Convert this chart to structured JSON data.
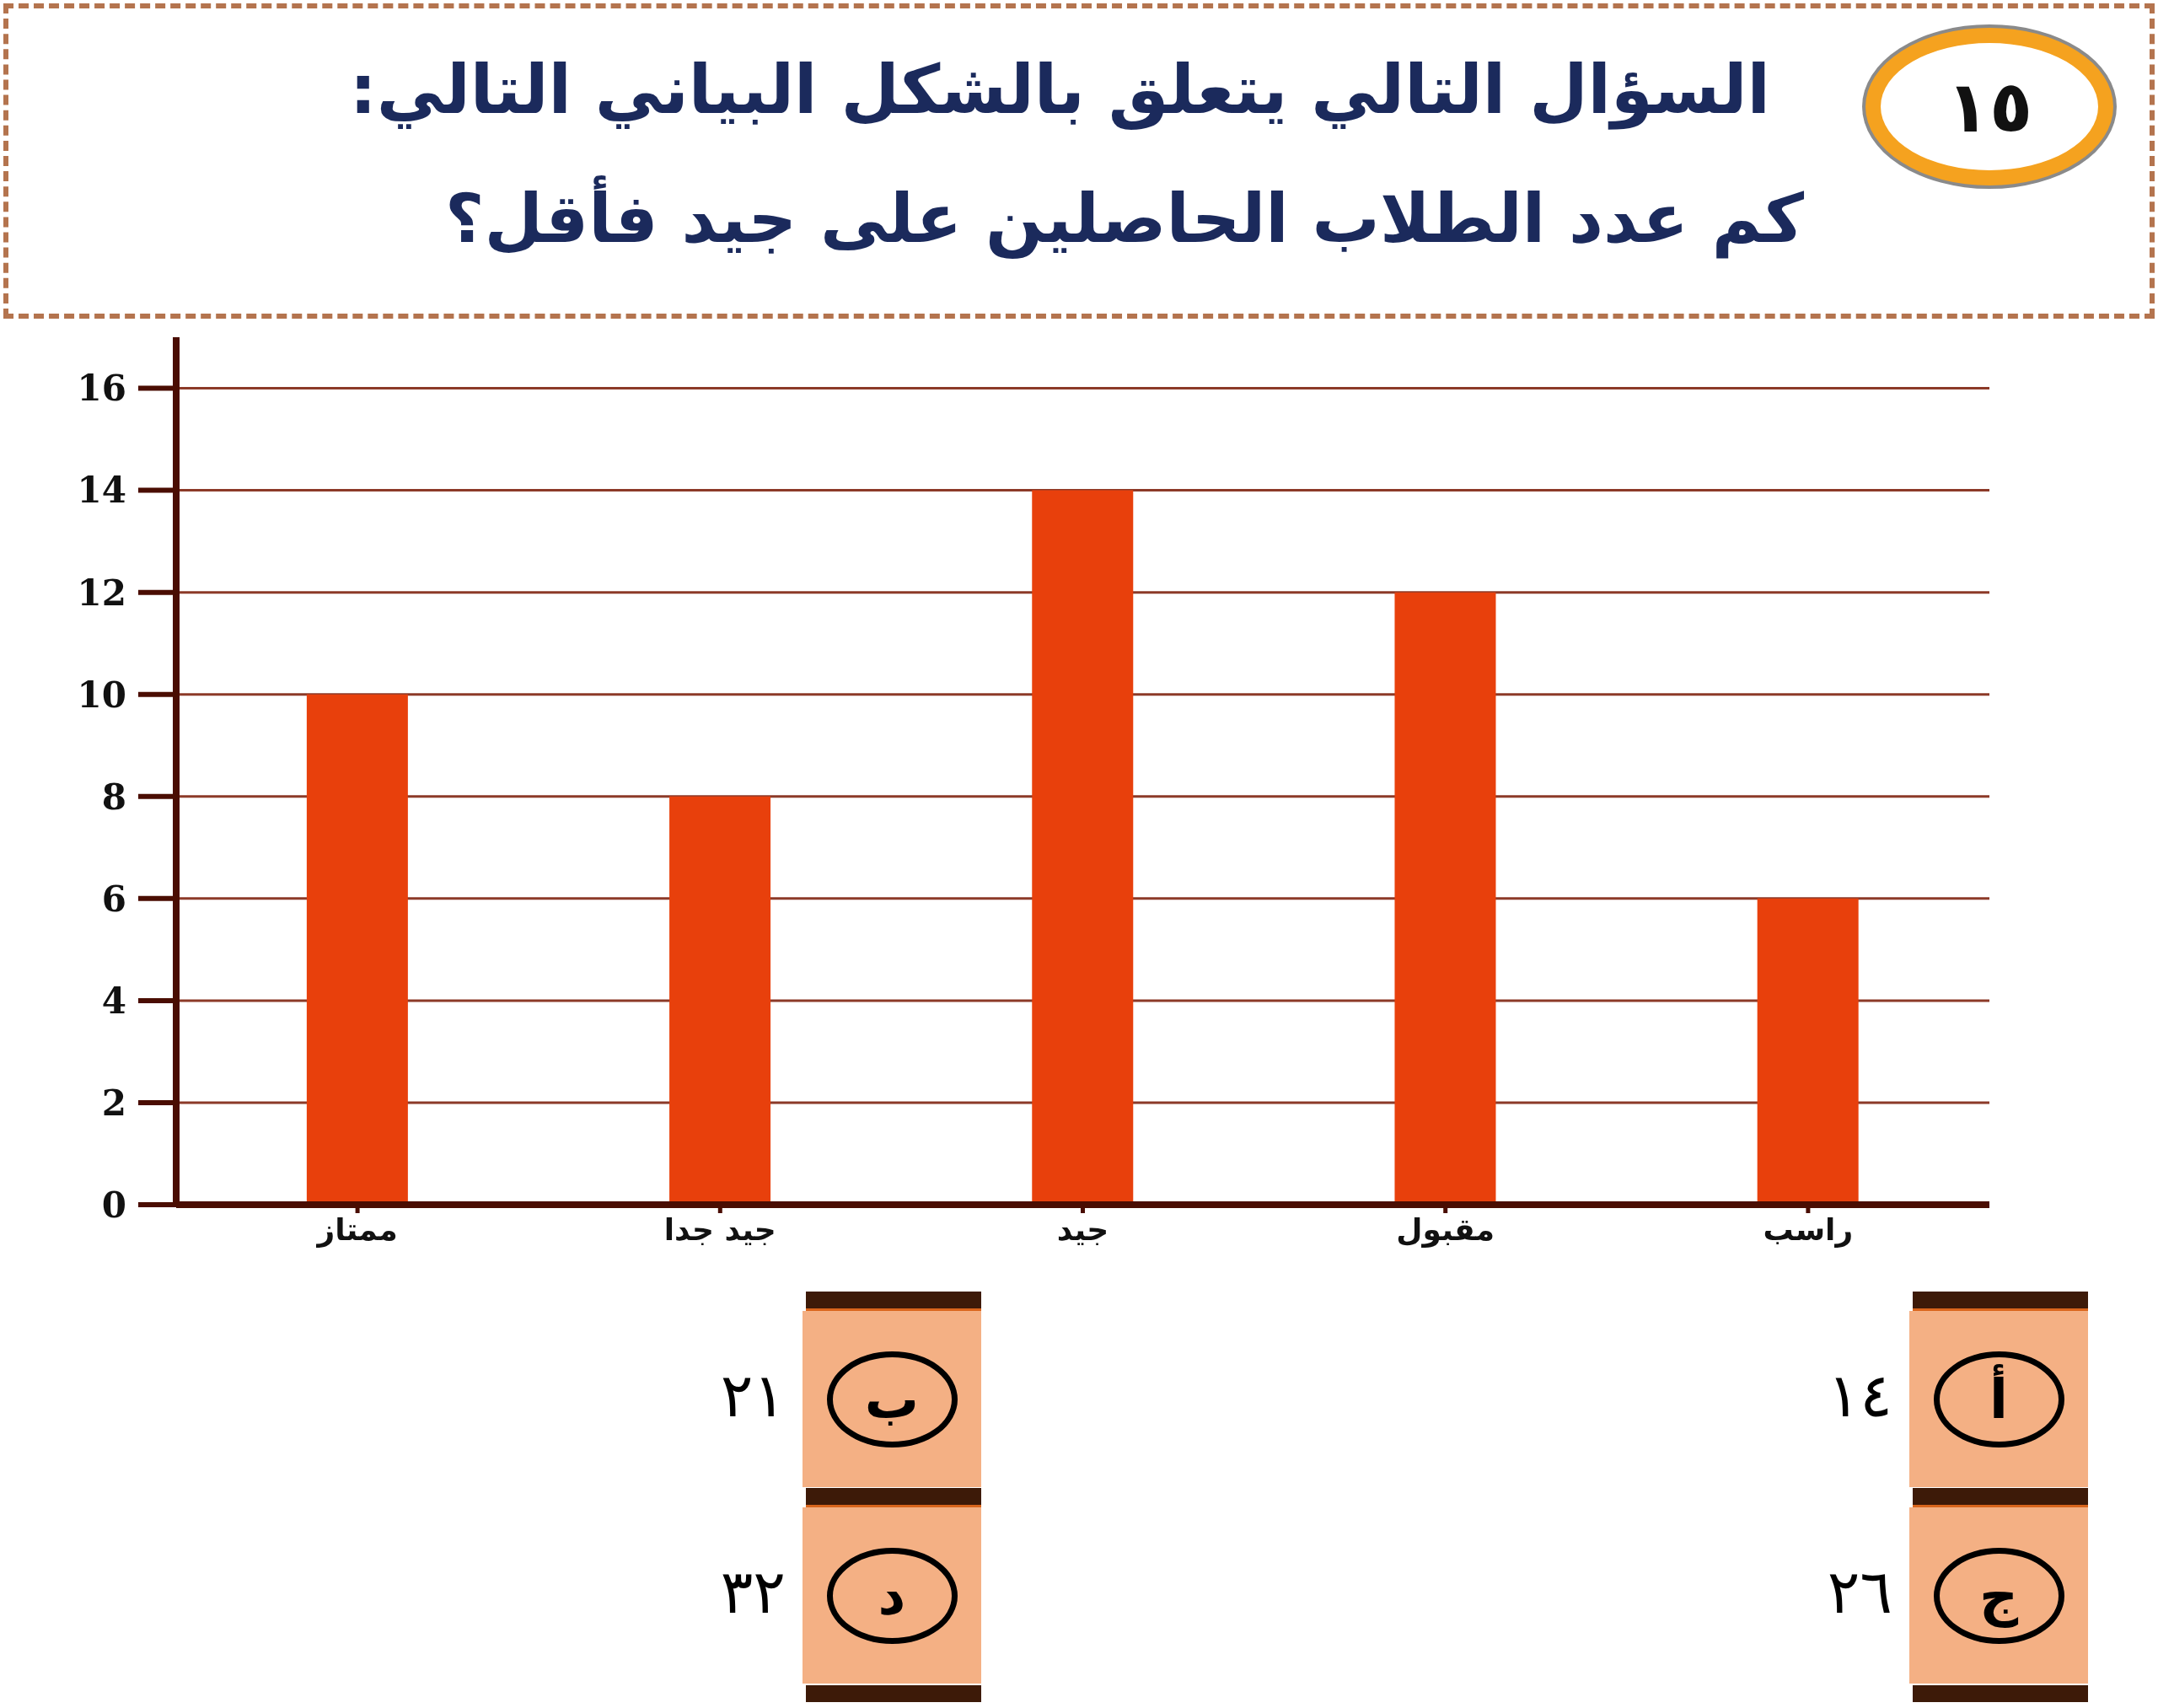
{
  "chart_data": {
    "type": "bar",
    "title": "السؤال التالي يتعلق بالشكل البياني التالي:",
    "subtitle": "كم عدد الطلاب الحاصلين على جيد فأقل؟",
    "categories": [
      "ممتاز",
      "جيد جدا",
      "جيد",
      "مقبول",
      "راسب"
    ],
    "values": [
      10,
      8,
      14,
      12,
      6
    ],
    "color": "#e8400c",
    "ylim": [
      0,
      17
    ],
    "yticks": [
      0,
      2,
      4,
      6,
      8,
      10,
      12,
      14,
      16
    ],
    "grid": "y",
    "annotations": [
      "١٥",
      "أ",
      "١٤",
      "ب",
      "٢١",
      "ج",
      "٢٦",
      "د",
      "٣٢"
    ]
  }
}
